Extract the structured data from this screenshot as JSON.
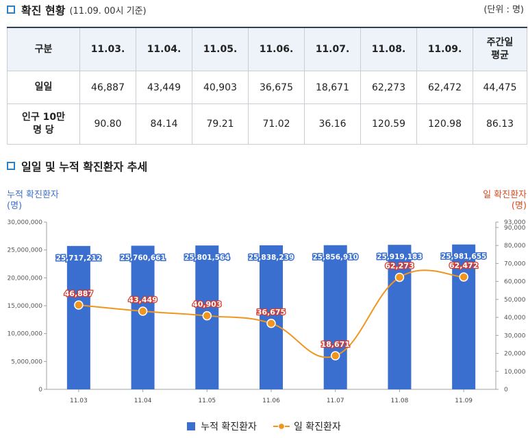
{
  "header": {
    "title": "확진 현황",
    "subtitle": "(11.09. 00시 기준)",
    "unit": "(단위 : 명)"
  },
  "table": {
    "columns": [
      "구분",
      "11.03.",
      "11.04.",
      "11.05.",
      "11.06.",
      "11.07.",
      "11.08.",
      "11.09.",
      "주간일 평균"
    ],
    "rows": [
      {
        "label": "일일",
        "values": [
          "46,887",
          "43,449",
          "40,903",
          "36,675",
          "18,671",
          "62,273",
          "62,472",
          "44,475"
        ]
      },
      {
        "label": "인구 10만 명 당",
        "values": [
          "90.80",
          "84.14",
          "79.21",
          "71.02",
          "36.16",
          "120.59",
          "120.98",
          "86.13"
        ]
      }
    ]
  },
  "chart_section": {
    "title": "일일 및 누적 확진환자 추세"
  },
  "chart_data": {
    "type": "bar",
    "categories": [
      "11.03",
      "11.04",
      "11.05",
      "11.06",
      "11.07",
      "11.08",
      "11.09"
    ],
    "series": [
      {
        "name": "누적 확진환자",
        "type": "bar",
        "axis": "left",
        "values": [
          25717212,
          25760661,
          25801564,
          25838239,
          25856910,
          25919183,
          25981655
        ],
        "labels": [
          "25,717,212",
          "25,760,661",
          "25,801,564",
          "25,838,239",
          "25,856,910",
          "25,919,183",
          "25,981,655"
        ]
      },
      {
        "name": "일 확진환자",
        "type": "line",
        "axis": "right",
        "values": [
          46887,
          43449,
          40903,
          36675,
          18671,
          62273,
          62472
        ],
        "labels": [
          "46,887",
          "43,449",
          "40,903",
          "36,675",
          "18,671",
          "62,273",
          "62,472"
        ]
      }
    ],
    "left_axis": {
      "label_lines": [
        "누적 확진환자",
        "(명)"
      ],
      "ylim": [
        0,
        30000000
      ],
      "ticks": [
        "0",
        "5,000,000",
        "10,000,000",
        "15,000,000",
        "20,000,000",
        "25,000,000",
        "30,000,000"
      ]
    },
    "right_axis": {
      "label_lines": [
        "일 확진환자",
        "(명)"
      ],
      "ylim": [
        0,
        93000
      ],
      "ticks": [
        "0",
        "10,000",
        "20,000",
        "30,000",
        "40,000",
        "50,000",
        "60,000",
        "70,000",
        "80,000",
        "90,000",
        "93,000"
      ]
    },
    "legend": {
      "position": "bottom-center",
      "entries": [
        "누적 확진환자",
        "일 확진환자"
      ]
    },
    "colors": {
      "bar": "#3b6fcf",
      "line": "#f0961e",
      "point_fill": "#f0961e",
      "data_label_line": "#d63a2f",
      "axis_title_left": "#3b6fcf",
      "axis_title_right": "#d94a1e"
    }
  }
}
